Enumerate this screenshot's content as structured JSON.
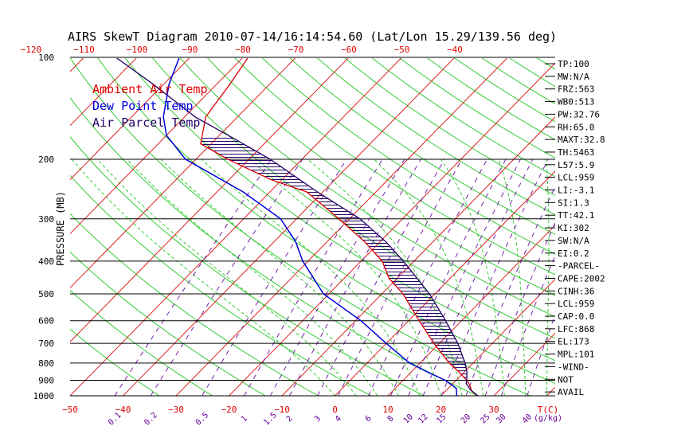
{
  "chart_data": {
    "type": "line",
    "title": "AIRS SkewT Diagram 2010-07-14/16:14:54.60 (Lat/Lon 15.29/139.56 deg)",
    "ylabel": "PRESSURE (MB)",
    "y_scale": "log",
    "ylim": [
      1000,
      100
    ],
    "pressure_ticks": [
      100,
      200,
      300,
      400,
      500,
      600,
      700,
      800,
      900,
      1000
    ],
    "bottom_temp_ticks": [
      -50,
      -40,
      -30,
      -20,
      -10,
      0,
      10,
      20,
      30
    ],
    "top_temp_ticks": [
      -120,
      -110,
      -100,
      -90,
      -80,
      -70,
      -60,
      -50,
      -40
    ],
    "bottom_temp_unit": "T(C)",
    "mixing_ratio_ticks": [
      "0.1",
      "0.2",
      "0.5",
      "1",
      "1.5",
      "2",
      "3",
      "4",
      "6",
      "8",
      "10",
      "12",
      "15",
      "20",
      "25",
      "30",
      "40"
    ],
    "mixing_ratio_unit": "(g/kg)",
    "legend": [
      {
        "label": "Ambient Air Temp",
        "color": "#dd0000"
      },
      {
        "label": "Dew Point Temp",
        "color": "#0000dd"
      },
      {
        "label": "Air Parcel Temp",
        "color": "#220066"
      }
    ],
    "series": [
      {
        "name": "Ambient Air Temp",
        "color": "#dd0000",
        "points": [
          [
            1000,
            27
          ],
          [
            970,
            25
          ],
          [
            930,
            23.5
          ],
          [
            900,
            22
          ],
          [
            850,
            19
          ],
          [
            800,
            15.5
          ],
          [
            700,
            9
          ],
          [
            600,
            2
          ],
          [
            500,
            -6
          ],
          [
            450,
            -11.5
          ],
          [
            400,
            -16
          ],
          [
            350,
            -23
          ],
          [
            300,
            -32
          ],
          [
            250,
            -43
          ],
          [
            230,
            -52
          ],
          [
            200,
            -64
          ],
          [
            180,
            -72
          ],
          [
            150,
            -76
          ],
          [
            120,
            -77.5
          ],
          [
            100,
            -79
          ]
        ]
      },
      {
        "name": "Dew Point Temp",
        "color": "#0000dd",
        "points": [
          [
            1000,
            23
          ],
          [
            950,
            21.5
          ],
          [
            900,
            18
          ],
          [
            850,
            13
          ],
          [
            800,
            8
          ],
          [
            700,
            0
          ],
          [
            600,
            -9
          ],
          [
            500,
            -21
          ],
          [
            400,
            -31
          ],
          [
            350,
            -36
          ],
          [
            300,
            -43
          ],
          [
            250,
            -55
          ],
          [
            200,
            -72
          ],
          [
            170,
            -80
          ],
          [
            150,
            -84
          ],
          [
            120,
            -89
          ],
          [
            100,
            -92
          ]
        ]
      },
      {
        "name": "Air Parcel Temp",
        "color": "#220066",
        "points": [
          [
            1000,
            27
          ],
          [
            960,
            24.5
          ],
          [
            920,
            22.5
          ],
          [
            900,
            22
          ],
          [
            850,
            20.5
          ],
          [
            800,
            18.5
          ],
          [
            700,
            13.5
          ],
          [
            600,
            7
          ],
          [
            500,
            -1
          ],
          [
            400,
            -12
          ],
          [
            350,
            -19
          ],
          [
            300,
            -28
          ],
          [
            250,
            -41
          ],
          [
            200,
            -56
          ],
          [
            173,
            -67
          ],
          [
            150,
            -78
          ],
          [
            120,
            -92
          ],
          [
            100,
            -104
          ]
        ]
      }
    ],
    "indices": [
      "TP:100",
      "MW:N/A",
      "FRZ:563",
      "WB0:513",
      "PW:32.76",
      "RH:65.0",
      "MAXT:32.8",
      "TH:5463",
      "L57:5.9",
      "LCL:959",
      "LI:-3.1",
      "SI:1.3",
      "TT:42.1",
      "KI:302",
      "SW:N/A",
      "EI:0.2",
      "-PARCEL-",
      "CAPE:2002",
      "CINH:36",
      "LCL:959",
      "CAP:0.0",
      "LFC:868",
      "EL:173",
      "MPL:101",
      "-WIND-",
      "NOT",
      "AVAIL"
    ],
    "grid": true
  }
}
